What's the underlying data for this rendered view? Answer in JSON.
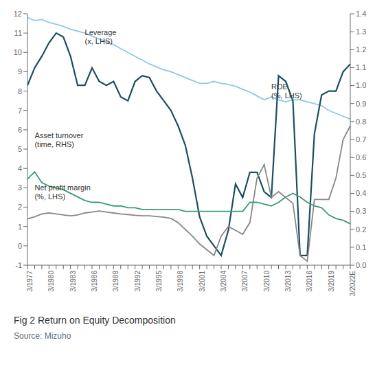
{
  "chart_data": {
    "type": "line",
    "title": "Fig 2 Return on Equity Decomposition",
    "source": "Source: Mizuho",
    "categories": [
      "3/1977",
      null,
      null,
      "3/1980",
      null,
      null,
      "3/1983",
      null,
      null,
      "3/1986",
      null,
      null,
      "3/1989",
      null,
      null,
      "3/1992",
      null,
      null,
      "3/1995",
      null,
      null,
      "3/1998",
      null,
      null,
      "3/2001",
      null,
      null,
      "3/2004",
      null,
      null,
      "3/2007",
      null,
      null,
      "3/2010",
      null,
      null,
      "3/2013",
      null,
      null,
      "3/2016",
      null,
      null,
      "3/2019",
      null,
      null,
      "3/2022E"
    ],
    "series": [
      {
        "name": "Leverage\n(x, LHS)",
        "color": "#8EC8E8",
        "values": [
          11.8,
          11.65,
          11.7,
          11.55,
          11.45,
          11.35,
          11.2,
          11.1,
          11.0,
          10.85,
          10.7,
          10.55,
          10.4,
          10.2,
          10.0,
          9.8,
          9.6,
          9.4,
          9.25,
          9.1,
          9.0,
          8.85,
          8.7,
          8.55,
          8.4,
          8.4,
          8.5,
          8.4,
          8.35,
          8.25,
          8.1,
          7.95,
          7.75,
          7.55,
          7.7,
          7.55,
          7.45,
          7.55,
          7.55,
          7.45,
          7.35,
          7.25,
          7.0,
          6.85,
          6.7,
          6.55
        ]
      },
      {
        "name": "ROE\n(%, LHS)",
        "color": "#1A4F5E",
        "values": [
          8.3,
          9.2,
          9.8,
          10.5,
          11.0,
          10.8,
          9.8,
          8.3,
          8.3,
          9.2,
          8.5,
          8.3,
          8.5,
          7.7,
          7.5,
          8.5,
          8.8,
          8.7,
          8.0,
          7.5,
          7.0,
          6.2,
          5.2,
          3.5,
          1.5,
          0.5,
          0.0,
          -0.5,
          0.8,
          3.2,
          2.5,
          3.8,
          3.8,
          2.8,
          2.5,
          8.8,
          8.5,
          7.5,
          -0.5,
          -0.5,
          5.8,
          7.8,
          8.0,
          8.0,
          9.0,
          9.4
        ]
      },
      {
        "name": "Net profit margin\n(%, LHS)",
        "color": "#888888",
        "values": [
          1.4,
          1.5,
          1.65,
          1.7,
          1.65,
          1.6,
          1.55,
          1.6,
          1.7,
          1.75,
          1.8,
          1.75,
          1.7,
          1.65,
          1.62,
          1.58,
          1.55,
          1.55,
          1.52,
          1.48,
          1.42,
          1.2,
          0.85,
          0.5,
          0.1,
          -0.2,
          -0.5,
          0.5,
          1.0,
          0.8,
          0.6,
          1.2,
          3.5,
          4.2,
          2.5,
          2.8,
          2.5,
          2.2,
          -0.5,
          -0.8,
          2.4,
          2.4,
          2.4,
          3.5,
          5.5,
          6.2
        ]
      },
      {
        "name": "Asset turnover\n(time, RHS)",
        "color": "#3A9A78",
        "axis": "y2",
        "values": [
          0.48,
          0.52,
          0.46,
          0.44,
          0.43,
          0.42,
          0.4,
          0.38,
          0.36,
          0.35,
          0.35,
          0.34,
          0.33,
          0.33,
          0.32,
          0.32,
          0.31,
          0.31,
          0.31,
          0.31,
          0.31,
          0.31,
          0.3,
          0.3,
          0.3,
          0.3,
          0.3,
          0.3,
          0.3,
          0.3,
          0.3,
          0.35,
          0.35,
          0.34,
          0.33,
          0.35,
          0.38,
          0.4,
          0.38,
          0.35,
          0.33,
          0.32,
          0.28,
          0.26,
          0.25,
          0.23
        ]
      }
    ],
    "ylim": [
      -1,
      12
    ],
    "yticks": [
      -1,
      0,
      1,
      2,
      3,
      4,
      5,
      6,
      7,
      8,
      9,
      10,
      11,
      12
    ],
    "y2lim": [
      0,
      1.4
    ],
    "y2ticks": [
      {
        "value": 0,
        "label": "0.0"
      },
      0.1,
      0.2,
      0.3,
      0.4,
      0.5,
      0.6,
      0.7,
      0.8,
      0.9,
      {
        "value": 1,
        "label": "1.0"
      },
      1.1,
      1.2,
      1.3,
      1.4
    ],
    "grid": false
  }
}
